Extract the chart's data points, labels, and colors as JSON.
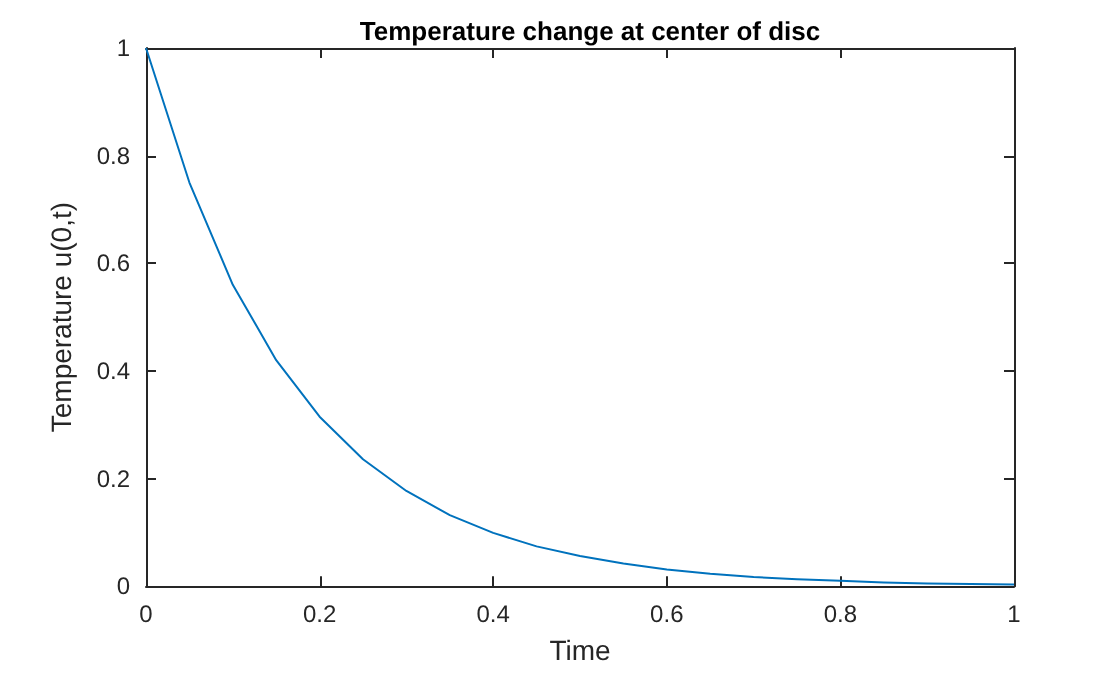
{
  "chart_data": {
    "type": "line",
    "title": "Temperature change at center of disc",
    "xlabel": "Time",
    "ylabel": "Temperature u(0,t)",
    "x": [
      0,
      0.05,
      0.1,
      0.15,
      0.2,
      0.25,
      0.3,
      0.35,
      0.4,
      0.45,
      0.5,
      0.55,
      0.6,
      0.65,
      0.7,
      0.75,
      0.8,
      0.85,
      0.9,
      0.95,
      1
    ],
    "series": [
      {
        "color": "#0072bd",
        "values": [
          1,
          0.75,
          0.56,
          0.42,
          0.315,
          0.236,
          0.177,
          0.132,
          0.099,
          0.074,
          0.056,
          0.042,
          0.031,
          0.023,
          0.017,
          0.013,
          0.01,
          0.007,
          0.005,
          0.004,
          0.003
        ]
      }
    ],
    "xlim": [
      0,
      1
    ],
    "xticks": [
      0,
      0.2,
      0.4,
      0.6,
      0.8,
      1
    ],
    "ylim": [
      0,
      1
    ],
    "yticks": [
      0,
      0.2,
      0.4,
      0.6,
      0.8,
      1
    ],
    "grid": false,
    "marker": "none",
    "line_style": "solid"
  }
}
